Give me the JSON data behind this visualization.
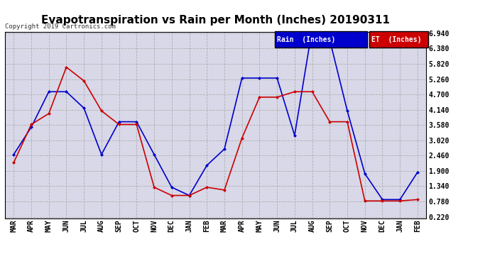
{
  "title": "Evapotranspiration vs Rain per Month (Inches) 20190311",
  "copyright": "Copyright 2019 Cartronics.com",
  "legend_rain": "Rain  (Inches)",
  "legend_et": "ET  (Inches)",
  "months": [
    "MAR",
    "APR",
    "MAY",
    "JUN",
    "JUL",
    "AUG",
    "SEP",
    "OCT",
    "NOV",
    "DEC",
    "JAN",
    "FEB",
    "MAR",
    "APR",
    "MAY",
    "JUN",
    "JUL",
    "AUG",
    "SEP",
    "OCT",
    "NOV",
    "DEC",
    "JAN",
    "FEB"
  ],
  "rain": [
    2.5,
    3.5,
    4.8,
    4.8,
    4.2,
    2.5,
    3.7,
    3.7,
    2.5,
    1.3,
    1.0,
    2.1,
    2.7,
    5.3,
    5.3,
    5.3,
    3.2,
    7.1,
    6.7,
    4.1,
    1.8,
    0.85,
    0.85,
    1.85
  ],
  "et": [
    2.2,
    3.6,
    4.0,
    5.7,
    5.2,
    4.1,
    3.6,
    3.6,
    1.3,
    1.0,
    1.0,
    1.3,
    1.2,
    3.1,
    4.6,
    4.6,
    4.8,
    4.8,
    3.7,
    3.7,
    0.8,
    0.8,
    0.8,
    0.85
  ],
  "rain_color": "#0000CC",
  "et_color": "#CC0000",
  "yticks": [
    0.22,
    0.78,
    1.34,
    1.9,
    2.46,
    3.02,
    3.58,
    4.14,
    4.7,
    5.26,
    5.82,
    6.38,
    6.94
  ],
  "ymin": 0.22,
  "ymax": 6.94,
  "background_color": "#FFFFFF",
  "plot_bg_color": "#D8D8E8",
  "grid_color": "#AAAAAA",
  "title_fontsize": 11,
  "tick_fontsize": 7,
  "legend_rain_bg": "#0000CC",
  "legend_et_bg": "#CC0000"
}
